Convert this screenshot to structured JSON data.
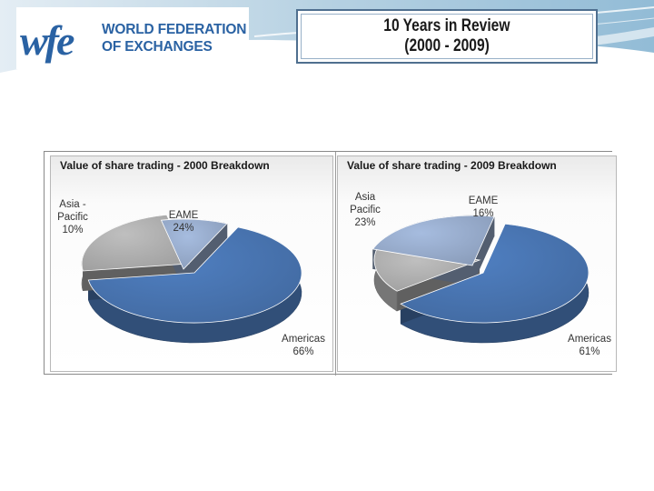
{
  "header": {
    "logo": {
      "mark_text": "wfe",
      "lines": [
        "WORLD FEDERATION",
        "OF EXCHANGES"
      ]
    },
    "title_lines": [
      "10 Years in Review",
      "(2000 - 2009)"
    ]
  },
  "colors": {
    "americas": "#4f7fc1",
    "eame": "#bfbfbf",
    "asia_pacific": "#a6bcdf",
    "brand": "#2a62a3"
  },
  "chart_data": [
    {
      "type": "pie",
      "title": "Value of share trading - 2000 Breakdown",
      "slices": [
        {
          "label": "Americas",
          "value": 66,
          "display": "66%"
        },
        {
          "label": "EAME",
          "value": 24,
          "display": "24%"
        },
        {
          "label": "Asia - Pacific",
          "value": 10,
          "display": "10%"
        }
      ]
    },
    {
      "type": "pie",
      "title": "Value of share trading - 2009 Breakdown",
      "slices": [
        {
          "label": "Americas",
          "value": 61,
          "display": "61%"
        },
        {
          "label": "EAME",
          "value": 16,
          "display": "16%"
        },
        {
          "label": "Asia Pacific",
          "value": 23,
          "display": "23%"
        }
      ]
    }
  ]
}
